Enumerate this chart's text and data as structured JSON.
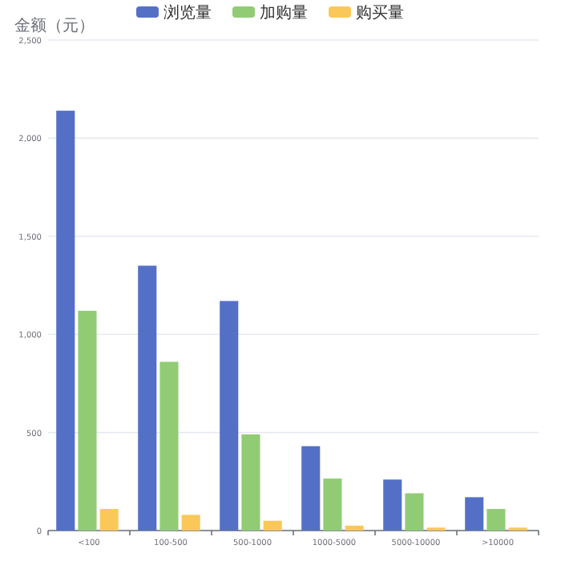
{
  "chart_data": {
    "type": "bar",
    "ylabel": "金额（元）",
    "categories": [
      "<100",
      "100-500",
      "500-1000",
      "1000-5000",
      "5000-10000",
      ">10000"
    ],
    "series": [
      {
        "name": "浏览量",
        "color": "#5470c6",
        "values": [
          2140,
          1350,
          1170,
          430,
          260,
          170
        ]
      },
      {
        "name": "加购量",
        "color": "#91cc75",
        "values": [
          1120,
          860,
          490,
          265,
          190,
          110
        ]
      },
      {
        "name": "购买量",
        "color": "#fac858",
        "values": [
          110,
          80,
          50,
          25,
          15,
          15
        ]
      }
    ],
    "ylim": [
      0,
      2500
    ],
    "yticks": [
      {
        "value": 0,
        "label": "0"
      },
      {
        "value": 500,
        "label": "500"
      },
      {
        "value": 1000,
        "label": "1,000"
      },
      {
        "value": 1500,
        "label": "1,500"
      },
      {
        "value": 2000,
        "label": "2,000"
      },
      {
        "value": 2500,
        "label": "2,500"
      }
    ],
    "grid": "y",
    "legend": "top"
  }
}
